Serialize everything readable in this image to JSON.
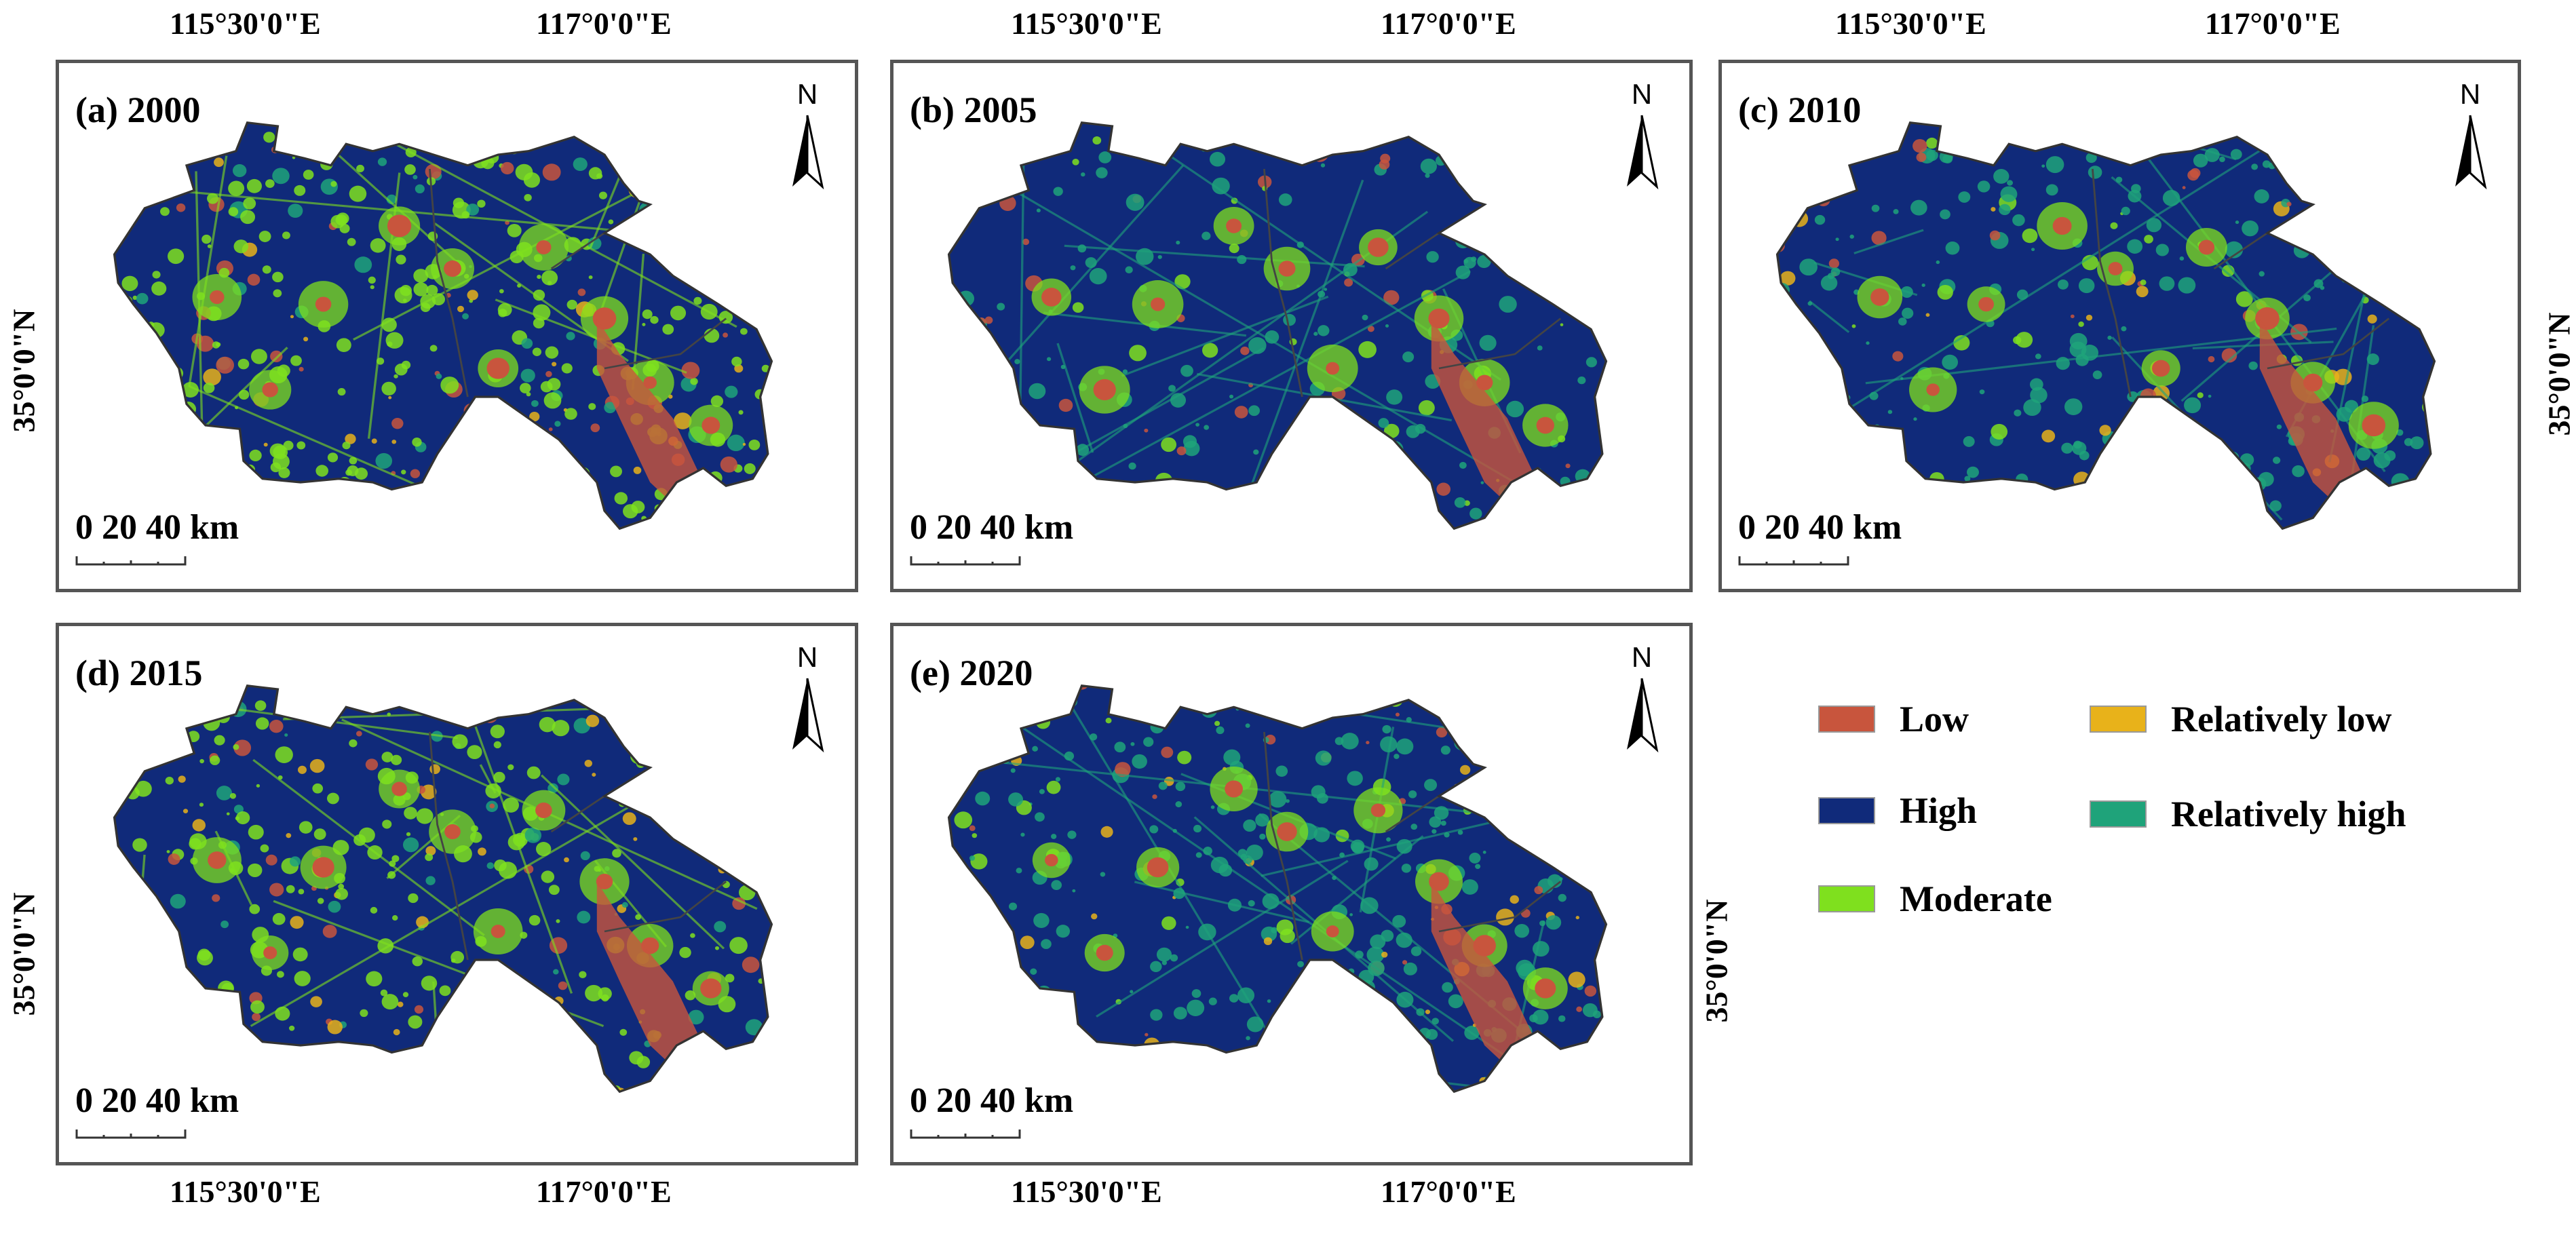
{
  "axes": {
    "lon_left": "115°30'0\"E",
    "lon_right": "117°0'0\"E",
    "lat": "35°0'0\"N"
  },
  "panels": [
    {
      "id": "a",
      "title": "(a) 2000"
    },
    {
      "id": "b",
      "title": "(b) 2005"
    },
    {
      "id": "c",
      "title": "(c) 2010"
    },
    {
      "id": "d",
      "title": "(d) 2015"
    },
    {
      "id": "e",
      "title": "(e) 2020"
    }
  ],
  "north_label": "N",
  "scale_label": "0  20 40 km",
  "legend": [
    {
      "label": "Low",
      "color": "#c8553d"
    },
    {
      "label": "Relatively low",
      "color": "#e8b21a"
    },
    {
      "label": "High",
      "color": "#102a7a"
    },
    {
      "label": "Relatively high",
      "color": "#1fa37a"
    },
    {
      "label": "Moderate",
      "color": "#7fe01e"
    }
  ]
}
